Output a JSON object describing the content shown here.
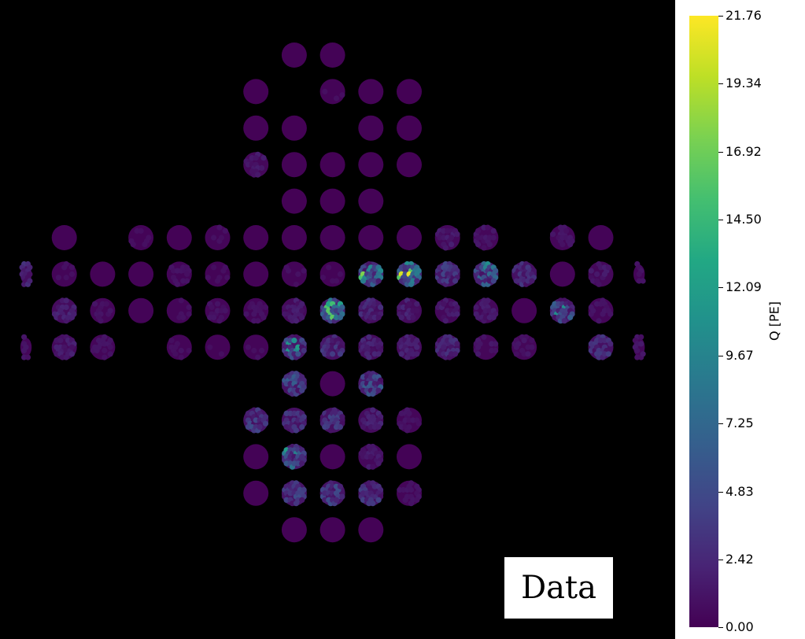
{
  "chart_data": {
    "type": "heatmap",
    "title": "",
    "annotation": "Data",
    "colorbar": {
      "label": "Q [PE]",
      "range": [
        0.0,
        21.76
      ],
      "colormap": "viridis",
      "ticks": [
        "0.00",
        "2.42",
        "4.83",
        "7.25",
        "9.67",
        "12.09",
        "14.50",
        "16.92",
        "19.34",
        "21.76"
      ]
    },
    "background_color": "#000000",
    "modules": [
      {
        "row": 0,
        "col": 7,
        "charge_level": 0.5
      },
      {
        "row": 0,
        "col": 8,
        "charge_level": 0.5
      },
      {
        "row": 1,
        "col": 6,
        "charge_level": 0.2
      },
      {
        "row": 1,
        "col": 8,
        "charge_level": 0.7
      },
      {
        "row": 1,
        "col": 9,
        "charge_level": 0.4
      },
      {
        "row": 1,
        "col": 10,
        "charge_level": 0.3
      },
      {
        "row": 2,
        "col": 6,
        "charge_level": 0.4
      },
      {
        "row": 2,
        "col": 7,
        "charge_level": 0.3
      },
      {
        "row": 2,
        "col": 9,
        "charge_level": 0.5
      },
      {
        "row": 2,
        "col": 10,
        "charge_level": 0.3
      },
      {
        "row": 3,
        "col": 6,
        "charge_level": 1.4
      },
      {
        "row": 3,
        "col": 7,
        "charge_level": 0.5
      },
      {
        "row": 3,
        "col": 8,
        "charge_level": 0.3
      },
      {
        "row": 3,
        "col": 9,
        "charge_level": 0.4
      },
      {
        "row": 3,
        "col": 10,
        "charge_level": 0.3
      },
      {
        "row": 4,
        "col": 7,
        "charge_level": 0.3
      },
      {
        "row": 4,
        "col": 8,
        "charge_level": 0.3
      },
      {
        "row": 4,
        "col": 9,
        "charge_level": 0.4
      },
      {
        "row": 5,
        "col": 1,
        "charge_level": 0.6
      },
      {
        "row": 5,
        "col": 3,
        "charge_level": 0.7
      },
      {
        "row": 5,
        "col": 4,
        "charge_level": 0.5
      },
      {
        "row": 5,
        "col": 5,
        "charge_level": 0.8
      },
      {
        "row": 5,
        "col": 6,
        "charge_level": 0.5
      },
      {
        "row": 5,
        "col": 7,
        "charge_level": 0.4
      },
      {
        "row": 5,
        "col": 8,
        "charge_level": 0.5
      },
      {
        "row": 5,
        "col": 9,
        "charge_level": 0.4
      },
      {
        "row": 5,
        "col": 10,
        "charge_level": 0.6
      },
      {
        "row": 5,
        "col": 11,
        "charge_level": 1.5
      },
      {
        "row": 5,
        "col": 12,
        "charge_level": 1.3
      },
      {
        "row": 5,
        "col": 14,
        "charge_level": 1.1
      },
      {
        "row": 5,
        "col": 15,
        "charge_level": 0.6
      },
      {
        "row": 6,
        "col": 0,
        "charge_level": 2.5,
        "partial": true
      },
      {
        "row": 6,
        "col": 1,
        "charge_level": 0.8
      },
      {
        "row": 6,
        "col": 2,
        "charge_level": 0.4
      },
      {
        "row": 6,
        "col": 3,
        "charge_level": 0.5
      },
      {
        "row": 6,
        "col": 4,
        "charge_level": 0.9
      },
      {
        "row": 6,
        "col": 5,
        "charge_level": 0.7
      },
      {
        "row": 6,
        "col": 6,
        "charge_level": 0.5
      },
      {
        "row": 6,
        "col": 7,
        "charge_level": 0.8
      },
      {
        "row": 6,
        "col": 8,
        "charge_level": 0.7
      },
      {
        "row": 6,
        "col": 9,
        "charge_level": 8.0,
        "hotspot": 21.0
      },
      {
        "row": 6,
        "col": 10,
        "charge_level": 8.5,
        "hotspot": 21.76
      },
      {
        "row": 6,
        "col": 11,
        "charge_level": 3.5
      },
      {
        "row": 6,
        "col": 12,
        "charge_level": 6.0,
        "hotspot": 13.0
      },
      {
        "row": 6,
        "col": 13,
        "charge_level": 3.0
      },
      {
        "row": 6,
        "col": 14,
        "charge_level": 0.6
      },
      {
        "row": 6,
        "col": 15,
        "charge_level": 1.4
      },
      {
        "row": 6,
        "col": 16,
        "charge_level": 0.9,
        "partial": true
      },
      {
        "row": 7,
        "col": 1,
        "charge_level": 2.0
      },
      {
        "row": 7,
        "col": 2,
        "charge_level": 1.0
      },
      {
        "row": 7,
        "col": 3,
        "charge_level": 0.6
      },
      {
        "row": 7,
        "col": 4,
        "charge_level": 0.8
      },
      {
        "row": 7,
        "col": 5,
        "charge_level": 1.0
      },
      {
        "row": 7,
        "col": 6,
        "charge_level": 0.9
      },
      {
        "row": 7,
        "col": 7,
        "charge_level": 1.6
      },
      {
        "row": 7,
        "col": 8,
        "charge_level": 7.0,
        "hotspot": 19.5
      },
      {
        "row": 7,
        "col": 9,
        "charge_level": 2.5
      },
      {
        "row": 7,
        "col": 10,
        "charge_level": 2.0
      },
      {
        "row": 7,
        "col": 11,
        "charge_level": 1.5
      },
      {
        "row": 7,
        "col": 12,
        "charge_level": 1.5
      },
      {
        "row": 7,
        "col": 13,
        "charge_level": 0.5
      },
      {
        "row": 7,
        "col": 14,
        "charge_level": 5.0,
        "hotspot": 12.0
      },
      {
        "row": 7,
        "col": 15,
        "charge_level": 1.0
      },
      {
        "row": 8,
        "col": 0,
        "charge_level": 1.0,
        "partial": true
      },
      {
        "row": 8,
        "col": 1,
        "charge_level": 1.6
      },
      {
        "row": 8,
        "col": 2,
        "charge_level": 1.0
      },
      {
        "row": 8,
        "col": 4,
        "charge_level": 0.8
      },
      {
        "row": 8,
        "col": 5,
        "charge_level": 0.7
      },
      {
        "row": 8,
        "col": 6,
        "charge_level": 0.8
      },
      {
        "row": 8,
        "col": 7,
        "charge_level": 4.5,
        "hotspot": 15.0
      },
      {
        "row": 8,
        "col": 8,
        "charge_level": 3.0
      },
      {
        "row": 8,
        "col": 9,
        "charge_level": 2.0
      },
      {
        "row": 8,
        "col": 10,
        "charge_level": 2.0
      },
      {
        "row": 8,
        "col": 11,
        "charge_level": 2.5
      },
      {
        "row": 8,
        "col": 12,
        "charge_level": 1.2
      },
      {
        "row": 8,
        "col": 13,
        "charge_level": 1.2
      },
      {
        "row": 8,
        "col": 15,
        "charge_level": 3.0
      },
      {
        "row": 8,
        "col": 16,
        "charge_level": 1.2,
        "partial": true
      },
      {
        "row": 9,
        "col": 7,
        "charge_level": 5.0
      },
      {
        "row": 9,
        "col": 8,
        "charge_level": 0.4
      },
      {
        "row": 9,
        "col": 9,
        "charge_level": 5.0
      },
      {
        "row": 10,
        "col": 6,
        "charge_level": 4.0
      },
      {
        "row": 10,
        "col": 7,
        "charge_level": 3.0
      },
      {
        "row": 10,
        "col": 8,
        "charge_level": 3.5
      },
      {
        "row": 10,
        "col": 9,
        "charge_level": 2.0
      },
      {
        "row": 10,
        "col": 10,
        "charge_level": 1.0
      },
      {
        "row": 11,
        "col": 6,
        "charge_level": 0.5
      },
      {
        "row": 11,
        "col": 7,
        "charge_level": 5.0,
        "hotspot": 13.0
      },
      {
        "row": 11,
        "col": 8,
        "charge_level": 0.5
      },
      {
        "row": 11,
        "col": 9,
        "charge_level": 1.5
      },
      {
        "row": 11,
        "col": 10,
        "charge_level": 0.4
      },
      {
        "row": 12,
        "col": 6,
        "charge_level": 0.5
      },
      {
        "row": 12,
        "col": 7,
        "charge_level": 4.0
      },
      {
        "row": 12,
        "col": 8,
        "charge_level": 4.0
      },
      {
        "row": 12,
        "col": 9,
        "charge_level": 3.5
      },
      {
        "row": 12,
        "col": 10,
        "charge_level": 1.0
      },
      {
        "row": 13,
        "col": 7,
        "charge_level": 0.4
      },
      {
        "row": 13,
        "col": 8,
        "charge_level": 0.5
      },
      {
        "row": 13,
        "col": 9,
        "charge_level": 0.4
      }
    ]
  }
}
